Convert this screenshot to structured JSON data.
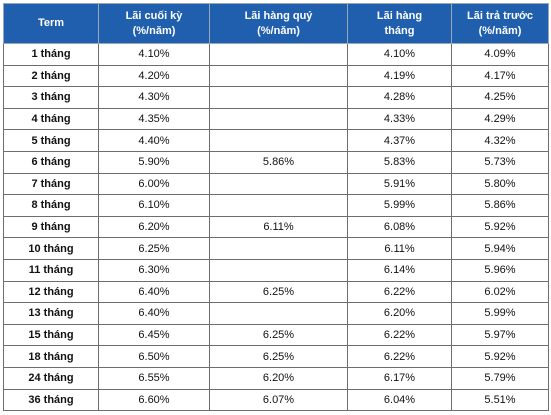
{
  "headers": [
    {
      "line1": "Term",
      "line2": ""
    },
    {
      "line1": "Lãi cuối kỳ",
      "line2": "(%/năm)"
    },
    {
      "line1": "Lãi hàng quý",
      "line2": "(%/năm)"
    },
    {
      "line1": "Lãi hàng",
      "line2": "tháng"
    },
    {
      "line1": "Lãi trả trước",
      "line2": "(%/năm)"
    }
  ],
  "rows": [
    {
      "term": "1 tháng",
      "cuoi_ky": "4.10%",
      "hang_quy": "",
      "hang_thang": "4.10%",
      "tra_truoc": "4.09%"
    },
    {
      "term": "2 tháng",
      "cuoi_ky": "4.20%",
      "hang_quy": "",
      "hang_thang": "4.19%",
      "tra_truoc": "4.17%"
    },
    {
      "term": "3 tháng",
      "cuoi_ky": "4.30%",
      "hang_quy": "",
      "hang_thang": "4.28%",
      "tra_truoc": "4.25%"
    },
    {
      "term": "4 tháng",
      "cuoi_ky": "4.35%",
      "hang_quy": "",
      "hang_thang": "4.33%",
      "tra_truoc": "4.29%"
    },
    {
      "term": "5 tháng",
      "cuoi_ky": "4.40%",
      "hang_quy": "",
      "hang_thang": "4.37%",
      "tra_truoc": "4.32%"
    },
    {
      "term": "6 tháng",
      "cuoi_ky": "5.90%",
      "hang_quy": "5.86%",
      "hang_thang": "5.83%",
      "tra_truoc": "5.73%"
    },
    {
      "term": "7 tháng",
      "cuoi_ky": "6.00%",
      "hang_quy": "",
      "hang_thang": "5.91%",
      "tra_truoc": "5.80%"
    },
    {
      "term": "8 tháng",
      "cuoi_ky": "6.10%",
      "hang_quy": "",
      "hang_thang": "5.99%",
      "tra_truoc": "5.86%"
    },
    {
      "term": "9 tháng",
      "cuoi_ky": "6.20%",
      "hang_quy": "6.11%",
      "hang_thang": "6.08%",
      "tra_truoc": "5.92%"
    },
    {
      "term": "10 tháng",
      "cuoi_ky": "6.25%",
      "hang_quy": "",
      "hang_thang": "6.11%",
      "tra_truoc": "5.94%"
    },
    {
      "term": "11 tháng",
      "cuoi_ky": "6.30%",
      "hang_quy": "",
      "hang_thang": "6.14%",
      "tra_truoc": "5.96%"
    },
    {
      "term": "12 tháng",
      "cuoi_ky": "6.40%",
      "hang_quy": "6.25%",
      "hang_thang": "6.22%",
      "tra_truoc": "6.02%"
    },
    {
      "term": "13 tháng",
      "cuoi_ky": "6.40%",
      "hang_quy": "",
      "hang_thang": "6.20%",
      "tra_truoc": "5.99%"
    },
    {
      "term": "15 tháng",
      "cuoi_ky": "6.45%",
      "hang_quy": "6.25%",
      "hang_thang": "6.22%",
      "tra_truoc": "5.97%"
    },
    {
      "term": "18 tháng",
      "cuoi_ky": "6.50%",
      "hang_quy": "6.25%",
      "hang_thang": "6.22%",
      "tra_truoc": "5.92%"
    },
    {
      "term": "24 tháng",
      "cuoi_ky": "6.55%",
      "hang_quy": "6.20%",
      "hang_thang": "6.17%",
      "tra_truoc": "5.79%"
    },
    {
      "term": "36 tháng",
      "cuoi_ky": "6.60%",
      "hang_quy": "6.07%",
      "hang_thang": "6.04%",
      "tra_truoc": "5.51%"
    }
  ],
  "colors": {
    "header_bg": "#1f5fae",
    "header_text": "#ffffff",
    "grid": "#6d6d6d"
  }
}
